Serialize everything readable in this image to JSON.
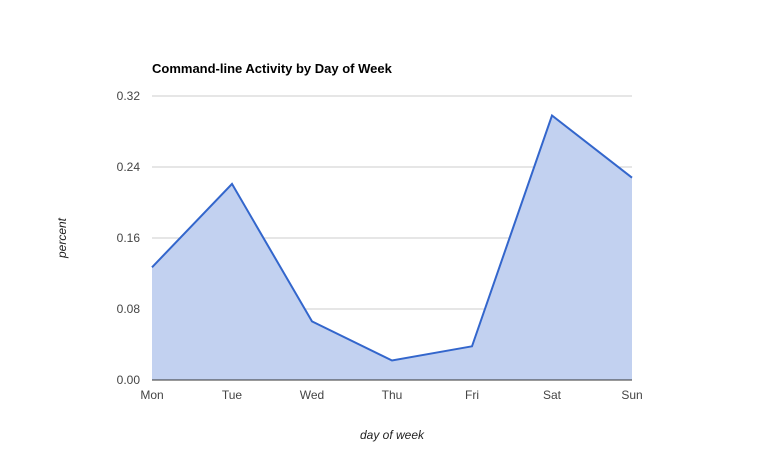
{
  "chart_data": {
    "type": "area",
    "title": "Command-line Activity by Day of Week",
    "xlabel": "day of week",
    "ylabel": "percent",
    "categories": [
      "Mon",
      "Tue",
      "Wed",
      "Thu",
      "Fri",
      "Sat",
      "Sun"
    ],
    "series": [
      {
        "values": [
          0.127,
          0.221,
          0.066,
          0.022,
          0.038,
          0.298,
          0.228
        ]
      }
    ],
    "ylim": [
      0,
      0.32
    ],
    "yticks": [
      0,
      0.08,
      0.16,
      0.24,
      0.32
    ],
    "ytick_labels": [
      "0.00",
      "0.08",
      "0.16",
      "0.24",
      "0.32"
    ],
    "grid": true,
    "legend": "none",
    "colors": {
      "line": "#3366cc",
      "fill": "#c2d1f0",
      "grid": "#cccccc",
      "baseline": "#333333"
    }
  }
}
